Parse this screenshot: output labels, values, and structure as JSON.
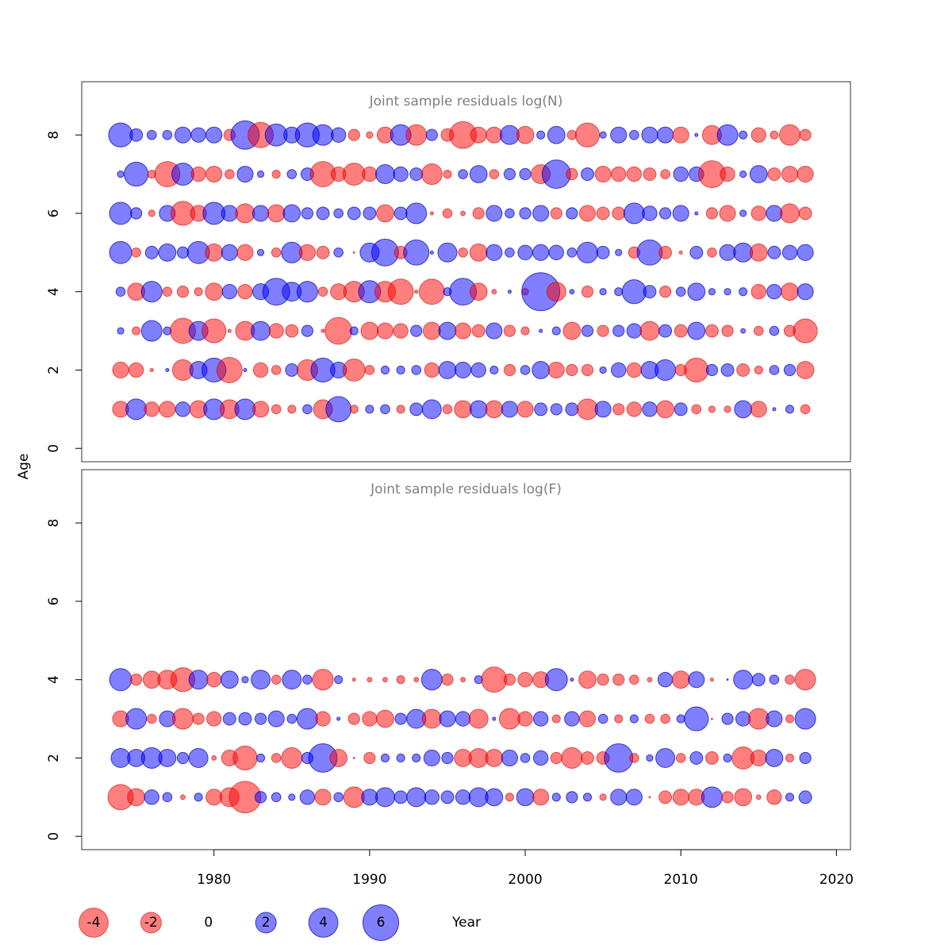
{
  "chart_data": {
    "type": "bubble",
    "xlabel": "Year",
    "ylabel": "Age",
    "xlim": [
      1971.5,
      2020.9
    ],
    "xticks": [
      1980,
      1990,
      2000,
      2010,
      2020
    ],
    "ylim": [
      -0.34,
      9.36
    ],
    "yticks": [
      0,
      2,
      4,
      6,
      8
    ],
    "positive_color": "rgba(0,0,255,0.5)",
    "negative_color": "rgba(255,0,0,0.5)",
    "legend": [
      -4,
      -2,
      0,
      2,
      4,
      6
    ],
    "x": [
      1974,
      1975,
      1976,
      1977,
      1978,
      1979,
      1980,
      1981,
      1982,
      1983,
      1984,
      1985,
      1986,
      1987,
      1988,
      1989,
      1990,
      1991,
      1992,
      1993,
      1994,
      1995,
      1996,
      1997,
      1998,
      1999,
      2000,
      2001,
      2002,
      2003,
      2004,
      2005,
      2006,
      2007,
      2008,
      2009,
      2010,
      2011,
      2012,
      2013,
      2014,
      2015,
      2016,
      2017,
      2018
    ],
    "panels": [
      {
        "title": "Joint sample residuals log(N)",
        "ages": [
          1,
          2,
          3,
          4,
          5,
          6,
          7,
          8
        ],
        "values": [
          [
            -1.2,
            2,
            -1,
            -1.2,
            1,
            -1.4,
            2,
            -1.7,
            2,
            -1.2,
            -0.4,
            -0.3,
            0.4,
            -1.7,
            3,
            -0.3,
            0.3,
            0.4,
            -0.3,
            0.75,
            1.7,
            -0.4,
            -1.4,
            1.4,
            -1.4,
            1.2,
            -1.2,
            0.75,
            0.6,
            0.75,
            -2,
            1.2,
            -0.6,
            -1,
            1,
            -1.4,
            0.75,
            -0.4,
            -0.2,
            -0.2,
            1.4,
            -1.2,
            0.05,
            0.3,
            -0.4
          ],
          [
            -1.2,
            -1,
            -0.05,
            0.05,
            -2,
            1.4,
            2.7,
            -3,
            0.05,
            -1,
            -0.4,
            0.75,
            -2,
            2.7,
            1.2,
            -2.3,
            -0.4,
            0.3,
            0.3,
            0.4,
            -1,
            1.4,
            1.2,
            1,
            0.3,
            -0.6,
            0.4,
            1.4,
            -1.2,
            -0.6,
            -0.6,
            0.2,
            1,
            -1,
            1.4,
            2,
            -0.6,
            -2.7,
            0.6,
            0.75,
            -0.75,
            -0.3,
            0.4,
            0.6,
            -1.4
          ],
          [
            0.2,
            -0.3,
            2,
            0.3,
            -3,
            1.7,
            -2.7,
            -0.05,
            -1.7,
            1.7,
            -1,
            -0.75,
            0.6,
            -0.05,
            -3.4,
            0.3,
            -1.4,
            -1.2,
            -1,
            0.6,
            -1.4,
            1.4,
            -1.2,
            -0.75,
            1.2,
            -0.6,
            -0.3,
            0.05,
            0.3,
            -1.4,
            0.6,
            -0.6,
            0.6,
            1,
            -1.7,
            0.75,
            -0.75,
            1.4,
            -0.75,
            -0.6,
            0.1,
            -0.4,
            0.4,
            -0.6,
            -2.7
          ],
          [
            0.4,
            -1.4,
            2,
            -0.4,
            -0.6,
            -0.3,
            -1.4,
            1,
            -1,
            1.2,
            3.4,
            1.7,
            2,
            -0.4,
            -1.2,
            -2,
            2.3,
            -2,
            -3,
            -0.05,
            -3,
            0.3,
            3.4,
            -1.4,
            -0.1,
            0.05,
            -0.2,
            6.8,
            -1.7,
            0.1,
            -0.6,
            0.2,
            0.3,
            2.7,
            0.75,
            -0.6,
            0.4,
            1.4,
            0.2,
            0.2,
            0.3,
            -1,
            1,
            -1.4,
            1.2
          ],
          [
            2.3,
            -0.4,
            0.75,
            1.4,
            0.6,
            2.3,
            -1.4,
            1.2,
            -1.2,
            0.2,
            -0.4,
            2,
            -1.2,
            -0.75,
            0.4,
            -0.01,
            1.7,
            3.4,
            -0.75,
            3,
            0.05,
            1.7,
            -0.4,
            -1.4,
            1.2,
            0.4,
            1,
            1.2,
            1,
            0.4,
            2,
            0.75,
            0.2,
            -0.6,
            3,
            -0.75,
            -0.05,
            0.75,
            -0.4,
            1.2,
            1.7,
            -1.4,
            0.75,
            1,
            1.2
          ],
          [
            2.3,
            0.6,
            -0.2,
            1.2,
            -2.7,
            -1.2,
            2.3,
            1.2,
            -1.7,
            1.2,
            -1.4,
            1.4,
            0.6,
            0.75,
            0.4,
            0.75,
            0.75,
            -1.4,
            0.75,
            2,
            -0.05,
            -0.4,
            -0.1,
            -0.6,
            1.2,
            0.4,
            0.6,
            1.2,
            -0.6,
            0.6,
            -1.2,
            -0.75,
            -0.75,
            2,
            1,
            0.6,
            1.2,
            0.05,
            -0.6,
            -1.2,
            0.2,
            -1,
            1.2,
            -1.7,
            -0.75
          ],
          [
            0.2,
            2.7,
            -0.3,
            -3,
            2.3,
            -1,
            -1.2,
            -0.4,
            1.2,
            0.2,
            -0.3,
            0.4,
            0.75,
            -3,
            -1,
            -2.3,
            -1,
            1.7,
            1,
            0.75,
            -2,
            -0.3,
            0.4,
            1.4,
            -0.4,
            0.6,
            0.6,
            -1.7,
            3.8,
            -0.6,
            0.75,
            -1.2,
            -1,
            -1,
            -0.75,
            -0.4,
            1,
            1,
            -3.4,
            -1,
            0.2,
            1.4,
            -0.75,
            -1.2,
            -1.2
          ],
          [
            2.7,
            0.75,
            0.4,
            0.4,
            1.2,
            1,
            1.2,
            -0.6,
            3.8,
            -3,
            2.3,
            1.2,
            2.7,
            2,
            1,
            -0.6,
            -0.2,
            -1.2,
            2,
            -2,
            0.6,
            -0.75,
            -3.4,
            -1.2,
            -1.2,
            1.7,
            -1.4,
            0.3,
            1.4,
            -0.4,
            -2.7,
            0.2,
            1.2,
            0.4,
            1.2,
            1.2,
            -1.2,
            0.05,
            -1.7,
            2,
            0.3,
            -1,
            -0.3,
            -2,
            -0.6
          ]
        ]
      },
      {
        "title": "Joint sample residuals log(F)",
        "ages": [
          1,
          2,
          3,
          4
        ],
        "values": [
          [
            -3,
            -1.4,
            1,
            0.4,
            -0.1,
            0.3,
            -1.2,
            -1.7,
            -4.7,
            0.6,
            0.4,
            0.2,
            1,
            -1.2,
            0.4,
            -2,
            1.2,
            1.7,
            0.75,
            1.7,
            1,
            0.75,
            1,
            1.7,
            1.4,
            -0.3,
            1.4,
            -1.2,
            0.3,
            0.6,
            0.3,
            -0.2,
            1.2,
            1.2,
            -0.01,
            -0.75,
            -1.2,
            -1.2,
            2,
            -0.6,
            -1.4,
            -0.1,
            -1,
            0.3,
            0.75
          ],
          [
            1.7,
            1.4,
            2,
            1.4,
            0.6,
            1.7,
            -0.1,
            -1.2,
            -2.7,
            0.3,
            -0.4,
            -2,
            0.6,
            3.8,
            -1.4,
            -0.01,
            -0.6,
            0.3,
            0.3,
            0.3,
            1.2,
            0.6,
            -1.4,
            -1.7,
            -1.4,
            1.2,
            0.4,
            1,
            -0.6,
            -2,
            -0.75,
            -0.75,
            3.8,
            -0.4,
            0.2,
            1.7,
            -0.4,
            0.75,
            -0.75,
            0.3,
            -2.3,
            -1.2,
            1.4,
            -0.3,
            0.6
          ],
          [
            -1.2,
            2,
            -0.4,
            1.2,
            -2,
            -0.6,
            -1,
            0.75,
            0.75,
            0.6,
            1.2,
            0.4,
            2,
            -1,
            0.05,
            -0.6,
            -1,
            -1.4,
            0.6,
            1.7,
            -1.7,
            1.2,
            1,
            -1.7,
            0.05,
            -2,
            -1,
            1,
            -0.3,
            1,
            -1.2,
            0.4,
            -0.3,
            0.3,
            -0.4,
            -0.4,
            0.3,
            2.7,
            -0.01,
            0.6,
            1,
            -2,
            1.2,
            -0.3,
            2
          ],
          [
            2.3,
            -0.6,
            -1.4,
            -1.7,
            -2.7,
            1.7,
            -1,
            1.4,
            0.2,
            1.7,
            -0.4,
            1.7,
            0.4,
            -2,
            0.3,
            -0.05,
            -0.1,
            -0.1,
            -0.3,
            -0.1,
            2,
            -0.6,
            -0.1,
            0.3,
            -3,
            -0.6,
            -1,
            -1.2,
            2.3,
            0.05,
            -1.4,
            -0.6,
            -0.6,
            -0.4,
            -0.1,
            1,
            -1.4,
            1.2,
            -0.05,
            0.01,
            1.7,
            0.75,
            0.4,
            -0.4,
            -2
          ]
        ]
      }
    ]
  }
}
